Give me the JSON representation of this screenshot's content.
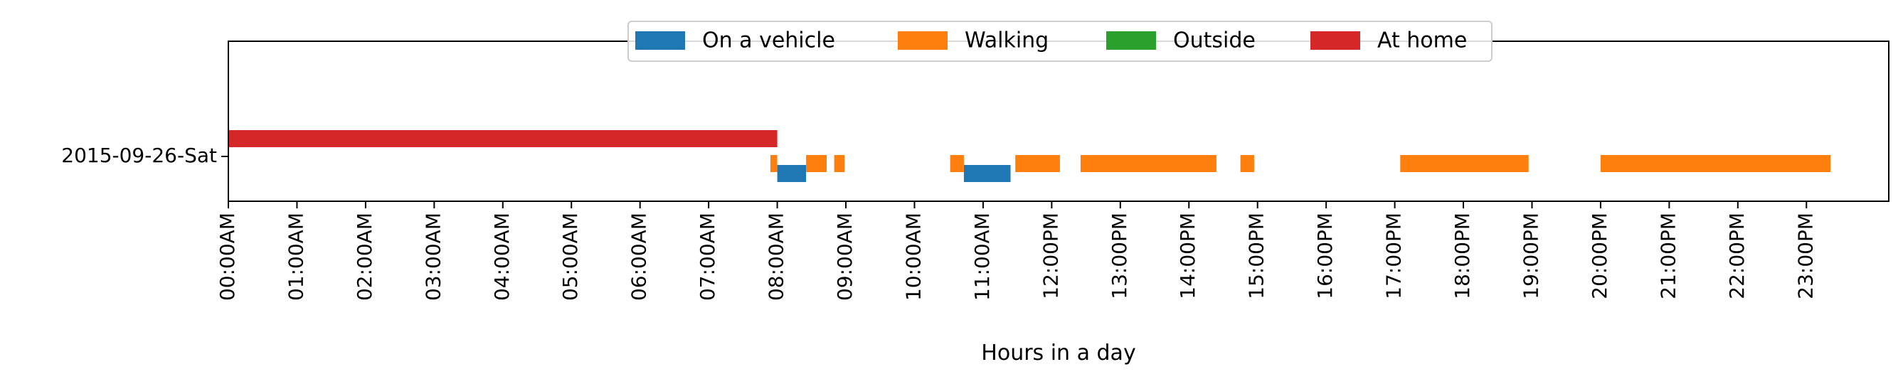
{
  "chart_data": {
    "type": "broken-barh",
    "title": "",
    "xlabel": "Hours in a day",
    "ylabel": "",
    "xlim": [
      0,
      24.2
    ],
    "x_ticks": [
      {
        "hour": 0,
        "label": "00:00AM"
      },
      {
        "hour": 1,
        "label": "01:00AM"
      },
      {
        "hour": 2,
        "label": "02:00AM"
      },
      {
        "hour": 3,
        "label": "03:00AM"
      },
      {
        "hour": 4,
        "label": "04:00AM"
      },
      {
        "hour": 5,
        "label": "05:00AM"
      },
      {
        "hour": 6,
        "label": "06:00AM"
      },
      {
        "hour": 7,
        "label": "07:00AM"
      },
      {
        "hour": 8,
        "label": "08:00AM"
      },
      {
        "hour": 9,
        "label": "09:00AM"
      },
      {
        "hour": 10,
        "label": "10:00AM"
      },
      {
        "hour": 11,
        "label": "11:00AM"
      },
      {
        "hour": 12,
        "label": "12:00PM"
      },
      {
        "hour": 13,
        "label": "13:00PM"
      },
      {
        "hour": 14,
        "label": "14:00PM"
      },
      {
        "hour": 15,
        "label": "15:00PM"
      },
      {
        "hour": 16,
        "label": "16:00PM"
      },
      {
        "hour": 17,
        "label": "17:00PM"
      },
      {
        "hour": 18,
        "label": "18:00PM"
      },
      {
        "hour": 19,
        "label": "19:00PM"
      },
      {
        "hour": 20,
        "label": "20:00PM"
      },
      {
        "hour": 21,
        "label": "21:00PM"
      },
      {
        "hour": 22,
        "label": "22:00PM"
      },
      {
        "hour": 23,
        "label": "23:00PM"
      }
    ],
    "categories": [
      "2015-09-26-Sat"
    ],
    "legend_location": "upper-center",
    "series": [
      {
        "name": "On a vehicle",
        "color": "#1f77b4",
        "lane": "bottom",
        "intervals": [
          [
            8.0,
            8.42
          ],
          [
            10.72,
            11.4
          ]
        ]
      },
      {
        "name": "Walking",
        "color": "#ff7f0e",
        "lane": "middle",
        "intervals": [
          [
            7.9,
            8.0
          ],
          [
            8.42,
            8.72
          ],
          [
            8.83,
            8.98
          ],
          [
            10.52,
            10.72
          ],
          [
            11.47,
            12.12
          ],
          [
            12.42,
            14.4
          ],
          [
            14.75,
            14.95
          ],
          [
            17.08,
            18.95
          ],
          [
            20.0,
            23.35
          ]
        ]
      },
      {
        "name": "Outside",
        "color": "#2ca02c",
        "lane": "middle",
        "intervals": []
      },
      {
        "name": "At home",
        "color": "#d62728",
        "lane": "top",
        "intervals": [
          [
            0.0,
            8.0
          ]
        ]
      }
    ]
  }
}
